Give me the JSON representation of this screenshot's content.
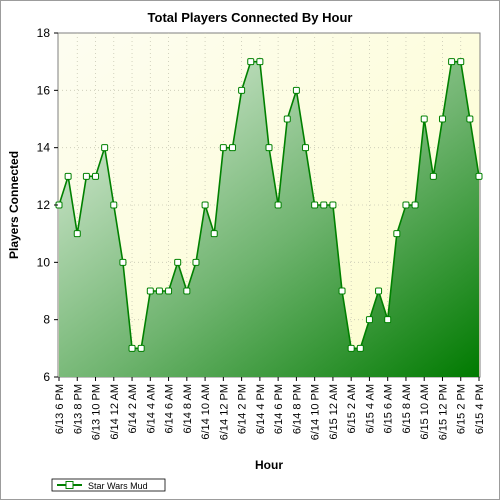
{
  "chart_data": {
    "type": "area",
    "title": "Total Players Connected By Hour",
    "xlabel": "Hour",
    "ylabel": "Players Connected",
    "ylim": [
      6,
      18
    ],
    "yticks": [
      6,
      8,
      10,
      12,
      14,
      16,
      18
    ],
    "grid": true,
    "legend_position": "bottom-left",
    "x": [
      "6/13 6 PM",
      "6/13 7 PM",
      "6/13 8 PM",
      "6/13 9 PM",
      "6/13 10 PM",
      "6/13 11 PM",
      "6/14 12 AM",
      "6/14 1 AM",
      "6/14 2 AM",
      "6/14 3 AM",
      "6/14 4 AM",
      "6/14 5 AM",
      "6/14 6 AM",
      "6/14 7 AM",
      "6/14 8 AM",
      "6/14 9 AM",
      "6/14 10 AM",
      "6/14 11 AM",
      "6/14 12 PM",
      "6/14 1 PM",
      "6/14 2 PM",
      "6/14 3 PM",
      "6/14 4 PM",
      "6/14 5 PM",
      "6/14 6 PM",
      "6/14 7 PM",
      "6/14 8 PM",
      "6/14 9 PM",
      "6/14 10 PM",
      "6/14 11 PM",
      "6/15 12 AM",
      "6/15 1 AM",
      "6/15 2 AM",
      "6/15 3 AM",
      "6/15 4 AM",
      "6/15 5 AM",
      "6/15 6 AM",
      "6/15 7 AM",
      "6/15 8 AM",
      "6/15 9 AM",
      "6/15 10 AM",
      "6/15 11 AM",
      "6/15 12 PM",
      "6/15 1 PM",
      "6/15 2 PM",
      "6/15 3 PM",
      "6/15 4 PM"
    ],
    "xtick_labels": [
      "6/13 6 PM",
      "6/13 8 PM",
      "6/13 10 PM",
      "6/14 12 AM",
      "6/14 2 AM",
      "6/14 4 AM",
      "6/14 6 AM",
      "6/14 8 AM",
      "6/14 10 AM",
      "6/14 12 PM",
      "6/14 2 PM",
      "6/14 4 PM",
      "6/14 6 PM",
      "6/14 8 PM",
      "6/14 10 PM",
      "6/15 12 AM",
      "6/15 2 AM",
      "6/15 4 AM",
      "6/15 6 AM",
      "6/15 8 AM",
      "6/15 10 AM",
      "6/15 12 PM",
      "6/15 2 PM",
      "6/15 4 PM"
    ],
    "series": [
      {
        "name": "Star Wars Mud",
        "color": "#008000",
        "values": [
          12,
          13,
          11,
          13,
          13,
          14,
          12,
          10,
          7,
          7,
          9,
          9,
          9,
          10,
          9,
          10,
          12,
          11,
          14,
          14,
          16,
          17,
          17,
          14,
          12,
          15,
          16,
          14,
          12,
          12,
          12,
          9,
          7,
          7,
          8,
          9,
          8,
          11,
          12,
          12,
          15,
          13,
          15,
          17,
          17,
          15,
          13
        ]
      }
    ]
  }
}
